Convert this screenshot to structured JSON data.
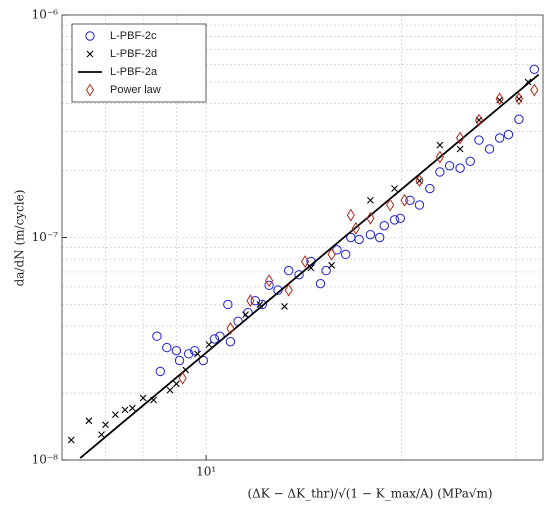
{
  "chart_data": {
    "type": "scatter",
    "xlabel": "(ΔK − ΔK_thr)/√(1 − K_max/A) (MPa√m)",
    "ylabel": "da/dN (m/cycle)",
    "xlog": true,
    "ylog": true,
    "grid": true,
    "legend": "upper left",
    "xlim": [
      6,
      33
    ],
    "ylim": [
      1e-08,
      1e-06
    ],
    "xticks": [
      {
        "value": 10,
        "label": "10¹"
      }
    ],
    "yticks": [
      {
        "value": 1e-08,
        "label": "10⁻⁸"
      },
      {
        "value": 1e-07,
        "label": "10⁻⁷"
      },
      {
        "value": 1e-06,
        "label": "10⁻⁶"
      }
    ],
    "xminorticks": [
      7,
      8,
      9,
      20,
      30
    ],
    "yminorticks": [
      2e-08,
      3e-08,
      4e-08,
      5e-08,
      6e-08,
      7e-08,
      8e-08,
      9e-08,
      2e-07,
      3e-07,
      4e-07,
      5e-07,
      6e-07,
      7e-07,
      8e-07,
      9e-07
    ],
    "series": [
      {
        "name": "L-PBF-2c",
        "marker": "circle",
        "color": "#1f1fd6",
        "x": [
          8.4,
          8.5,
          8.7,
          9.0,
          9.1,
          9.4,
          9.6,
          9.9,
          10.3,
          10.5,
          10.9,
          10.8,
          11.2,
          11.6,
          11.9,
          12.2,
          12.5,
          12.9,
          13.4,
          13.9,
          14.5,
          15.0,
          15.3,
          15.9,
          16.4,
          16.7,
          17.2,
          17.9,
          18.5,
          18.8,
          19.5,
          19.9,
          20.6,
          21.3,
          22.1,
          22.9,
          23.7,
          24.6,
          25.5,
          26.3,
          27.3,
          28.3,
          29.2,
          30.3,
          32
        ],
        "values": [
          3.6e-08,
          2.5e-08,
          3.2e-08,
          3.1e-08,
          2.8e-08,
          3e-08,
          3.1e-08,
          2.8e-08,
          3.5e-08,
          3.6e-08,
          3.4e-08,
          5e-08,
          4.2e-08,
          4.6e-08,
          5.2e-08,
          5e-08,
          6.1e-08,
          5.8e-08,
          7.1e-08,
          6.8e-08,
          7.8e-08,
          6.2e-08,
          7.1e-08,
          8.8e-08,
          8.4e-08,
          1e-07,
          9.8e-08,
          1.03e-07,
          1e-07,
          1.13e-07,
          1.2e-07,
          1.22e-07,
          1.47e-07,
          1.4e-07,
          1.66e-07,
          1.97e-07,
          2.1e-07,
          2.05e-07,
          2.2e-07,
          2.74e-07,
          2.5e-07,
          2.8e-07,
          2.9e-07,
          3.4e-07,
          5.7e-07
        ]
      },
      {
        "name": "L-PBF-2d",
        "marker": "x",
        "color": "#000000",
        "x": [
          6.2,
          6.6,
          6.9,
          7.0,
          7.25,
          7.5,
          7.7,
          8.0,
          8.3,
          8.8,
          9.0,
          9.3,
          9.7,
          10.1,
          11.5,
          12.1,
          13.2,
          14.5,
          15.6,
          17.9,
          19.5,
          21.3,
          22.9,
          24.6,
          26.3,
          28.3,
          30.3,
          31.3
        ],
        "values": [
          1.23e-08,
          1.5e-08,
          1.3e-08,
          1.44e-08,
          1.6e-08,
          1.68e-08,
          1.71e-08,
          1.9e-08,
          1.86e-08,
          2.06e-08,
          2.2e-08,
          2.54e-08,
          3e-08,
          3.3e-08,
          4.5e-08,
          5e-08,
          4.9e-08,
          7.3e-08,
          7.5e-08,
          1.47e-07,
          1.66e-07,
          1.8e-07,
          2.6e-07,
          2.5e-07,
          3.37e-07,
          4.15e-07,
          4.2e-07,
          5e-07
        ]
      },
      {
        "name": "L-PBF-2a",
        "marker": "line",
        "color": "#000000",
        "x": [
          6.4,
          32.5
        ],
        "values": [
          1.02e-08,
          5.4e-07
        ]
      },
      {
        "name": "Power law",
        "marker": "diamond",
        "color": "#b02a1a",
        "x": [
          9.2,
          10.9,
          11.7,
          12.5,
          13.4,
          14.2,
          15.6,
          16.7,
          17.0,
          17.9,
          19.2,
          20.2,
          21.3,
          22.9,
          24.6,
          26.3,
          28.3,
          30.3,
          32
        ],
        "values": [
          2.33e-08,
          3.9e-08,
          5.2e-08,
          6.4e-08,
          5.8e-08,
          7.8e-08,
          8.4e-08,
          1.26e-07,
          1.1e-07,
          1.22e-07,
          1.4e-07,
          1.47e-07,
          1.8e-07,
          2.3e-07,
          2.8e-07,
          3.37e-07,
          4.2e-07,
          4.2e-07,
          4.6e-07
        ]
      }
    ]
  }
}
